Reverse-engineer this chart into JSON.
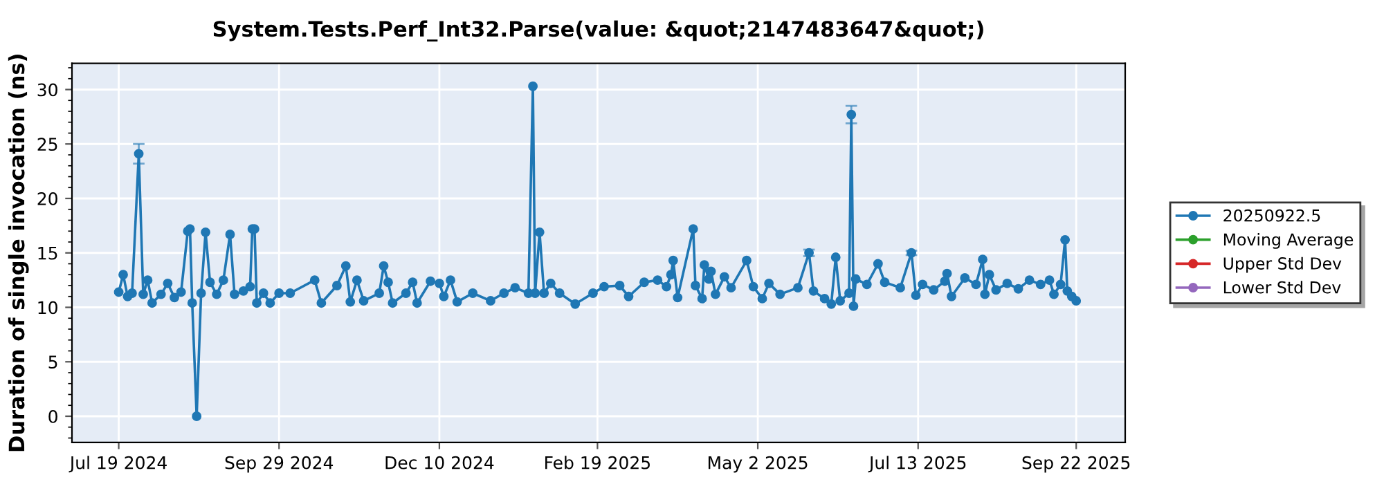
{
  "chart_data": {
    "type": "line",
    "title": "System.Tests.Perf_Int32.Parse(value: &quot;2147483647&quot;)",
    "ylabel": "Duration of single invocation (ns)",
    "xlim": [
      "2024-06-28",
      "2025-10-14"
    ],
    "ylim": [
      -2.4,
      32.4
    ],
    "xticks": [
      {
        "value": "2024-07-19",
        "label": "Jul 19 2024"
      },
      {
        "value": "2024-09-29",
        "label": "Sep 29 2024"
      },
      {
        "value": "2024-12-10",
        "label": "Dec 10 2024"
      },
      {
        "value": "2025-02-19",
        "label": "Feb 19 2025"
      },
      {
        "value": "2025-05-02",
        "label": "May 2 2025"
      },
      {
        "value": "2025-07-13",
        "label": "Jul 13 2025"
      },
      {
        "value": "2025-09-22",
        "label": "Sep 22 2025"
      }
    ],
    "yticks": [
      0,
      5,
      10,
      15,
      20,
      25,
      30
    ],
    "grid": true,
    "legend": "right",
    "marker": "circle",
    "line_style": "solid",
    "series": [
      {
        "name": "20250922.5",
        "color": "#1f77b4",
        "x": [
          "2024-07-19",
          "2024-07-21",
          "2024-07-23",
          "2024-07-25",
          "2024-07-28",
          "2024-07-30",
          "2024-08-01",
          "2024-08-03",
          "2024-08-07",
          "2024-08-10",
          "2024-08-13",
          "2024-08-16",
          "2024-08-19",
          "2024-08-20",
          "2024-08-21",
          "2024-08-23",
          "2024-08-25",
          "2024-08-27",
          "2024-08-29",
          "2024-09-01",
          "2024-09-04",
          "2024-09-07",
          "2024-09-09",
          "2024-09-13",
          "2024-09-16",
          "2024-09-17",
          "2024-09-18",
          "2024-09-19",
          "2024-09-22",
          "2024-09-25",
          "2024-09-29",
          "2024-10-04",
          "2024-10-15",
          "2024-10-18",
          "2024-10-25",
          "2024-10-29",
          "2024-10-31",
          "2024-11-03",
          "2024-11-06",
          "2024-11-13",
          "2024-11-15",
          "2024-11-17",
          "2024-11-19",
          "2024-11-25",
          "2024-11-28",
          "2024-11-30",
          "2024-12-06",
          "2024-12-10",
          "2024-12-12",
          "2024-12-15",
          "2024-12-18",
          "2024-12-25",
          "2025-01-02",
          "2025-01-08",
          "2025-01-13",
          "2025-01-19",
          "2025-01-21",
          "2025-01-22",
          "2025-01-24",
          "2025-01-26",
          "2025-01-29",
          "2025-02-02",
          "2025-02-09",
          "2025-02-17",
          "2025-02-22",
          "2025-03-01",
          "2025-03-05",
          "2025-03-12",
          "2025-03-18",
          "2025-03-22",
          "2025-03-24",
          "2025-03-25",
          "2025-03-27",
          "2025-04-03",
          "2025-04-04",
          "2025-04-07",
          "2025-04-08",
          "2025-04-10",
          "2025-04-11",
          "2025-04-13",
          "2025-04-17",
          "2025-04-20",
          "2025-04-27",
          "2025-04-30",
          "2025-05-04",
          "2025-05-07",
          "2025-05-12",
          "2025-05-20",
          "2025-05-25",
          "2025-05-27",
          "2025-06-01",
          "2025-06-04",
          "2025-06-06",
          "2025-06-08",
          "2025-06-12",
          "2025-06-13",
          "2025-06-14",
          "2025-06-15",
          "2025-06-20",
          "2025-06-25",
          "2025-06-28",
          "2025-07-05",
          "2025-07-10",
          "2025-07-12",
          "2025-07-15",
          "2025-07-20",
          "2025-07-25",
          "2025-07-26",
          "2025-07-28",
          "2025-08-03",
          "2025-08-08",
          "2025-08-11",
          "2025-08-12",
          "2025-08-14",
          "2025-08-17",
          "2025-08-22",
          "2025-08-27",
          "2025-09-01",
          "2025-09-06",
          "2025-09-10",
          "2025-09-12",
          "2025-09-15",
          "2025-09-17",
          "2025-09-18",
          "2025-09-20",
          "2025-09-22"
        ],
        "values": [
          11.4,
          13.0,
          11.0,
          11.3,
          24.1,
          11.2,
          12.5,
          10.4,
          11.2,
          12.2,
          10.9,
          11.4,
          17.0,
          17.2,
          10.4,
          0.0,
          11.3,
          16.9,
          12.3,
          11.2,
          12.5,
          16.7,
          11.2,
          11.5,
          11.9,
          17.2,
          17.2,
          10.4,
          11.3,
          10.4,
          11.3,
          11.3,
          12.5,
          10.4,
          12.0,
          13.8,
          10.5,
          12.5,
          10.6,
          11.3,
          13.8,
          12.3,
          10.4,
          11.3,
          12.3,
          10.4,
          12.4,
          12.2,
          11.0,
          12.5,
          10.5,
          11.3,
          10.6,
          11.3,
          11.8,
          11.3,
          30.3,
          11.3,
          16.9,
          11.3,
          12.2,
          11.3,
          10.3,
          11.3,
          11.9,
          12.0,
          11.0,
          12.3,
          12.5,
          11.9,
          13.0,
          14.3,
          10.9,
          17.2,
          12.0,
          10.8,
          13.9,
          12.6,
          13.3,
          11.2,
          12.8,
          11.8,
          14.3,
          11.9,
          10.8,
          12.2,
          11.2,
          11.8,
          15.0,
          11.5,
          10.8,
          10.3,
          14.6,
          10.6,
          11.3,
          27.7,
          10.1,
          12.6,
          12.1,
          14.0,
          12.3,
          11.8,
          15.0,
          11.1,
          12.1,
          11.6,
          12.4,
          13.1,
          11.0,
          12.7,
          12.1,
          14.4,
          11.2,
          13.0,
          11.6,
          12.2,
          11.7,
          12.5,
          12.1,
          12.5,
          11.2,
          12.1,
          16.2,
          11.5,
          11.0,
          10.6
        ],
        "errors": [
          null,
          null,
          null,
          null,
          0.9,
          null,
          null,
          null,
          null,
          null,
          null,
          null,
          null,
          null,
          null,
          null,
          null,
          null,
          null,
          null,
          null,
          null,
          null,
          null,
          null,
          null,
          null,
          null,
          null,
          null,
          null,
          null,
          null,
          null,
          null,
          null,
          null,
          null,
          null,
          null,
          null,
          null,
          null,
          null,
          null,
          null,
          null,
          null,
          null,
          null,
          null,
          null,
          null,
          null,
          null,
          null,
          null,
          null,
          null,
          null,
          null,
          null,
          null,
          null,
          null,
          null,
          null,
          null,
          null,
          null,
          null,
          null,
          null,
          null,
          null,
          null,
          null,
          null,
          null,
          null,
          null,
          null,
          null,
          null,
          null,
          null,
          null,
          null,
          0.3,
          null,
          null,
          null,
          null,
          null,
          null,
          0.8,
          null,
          null,
          null,
          null,
          null,
          null,
          0.2,
          null,
          null,
          null,
          null,
          null,
          null,
          null,
          null,
          null,
          null,
          null,
          null,
          null,
          null,
          null,
          null,
          null,
          null,
          null,
          null,
          null,
          null,
          null
        ]
      },
      {
        "name": "Moving Average",
        "color": "#2ca02c"
      },
      {
        "name": "Upper Std Dev",
        "color": "#d62728"
      },
      {
        "name": "Lower Std Dev",
        "color": "#9467bd"
      }
    ]
  }
}
